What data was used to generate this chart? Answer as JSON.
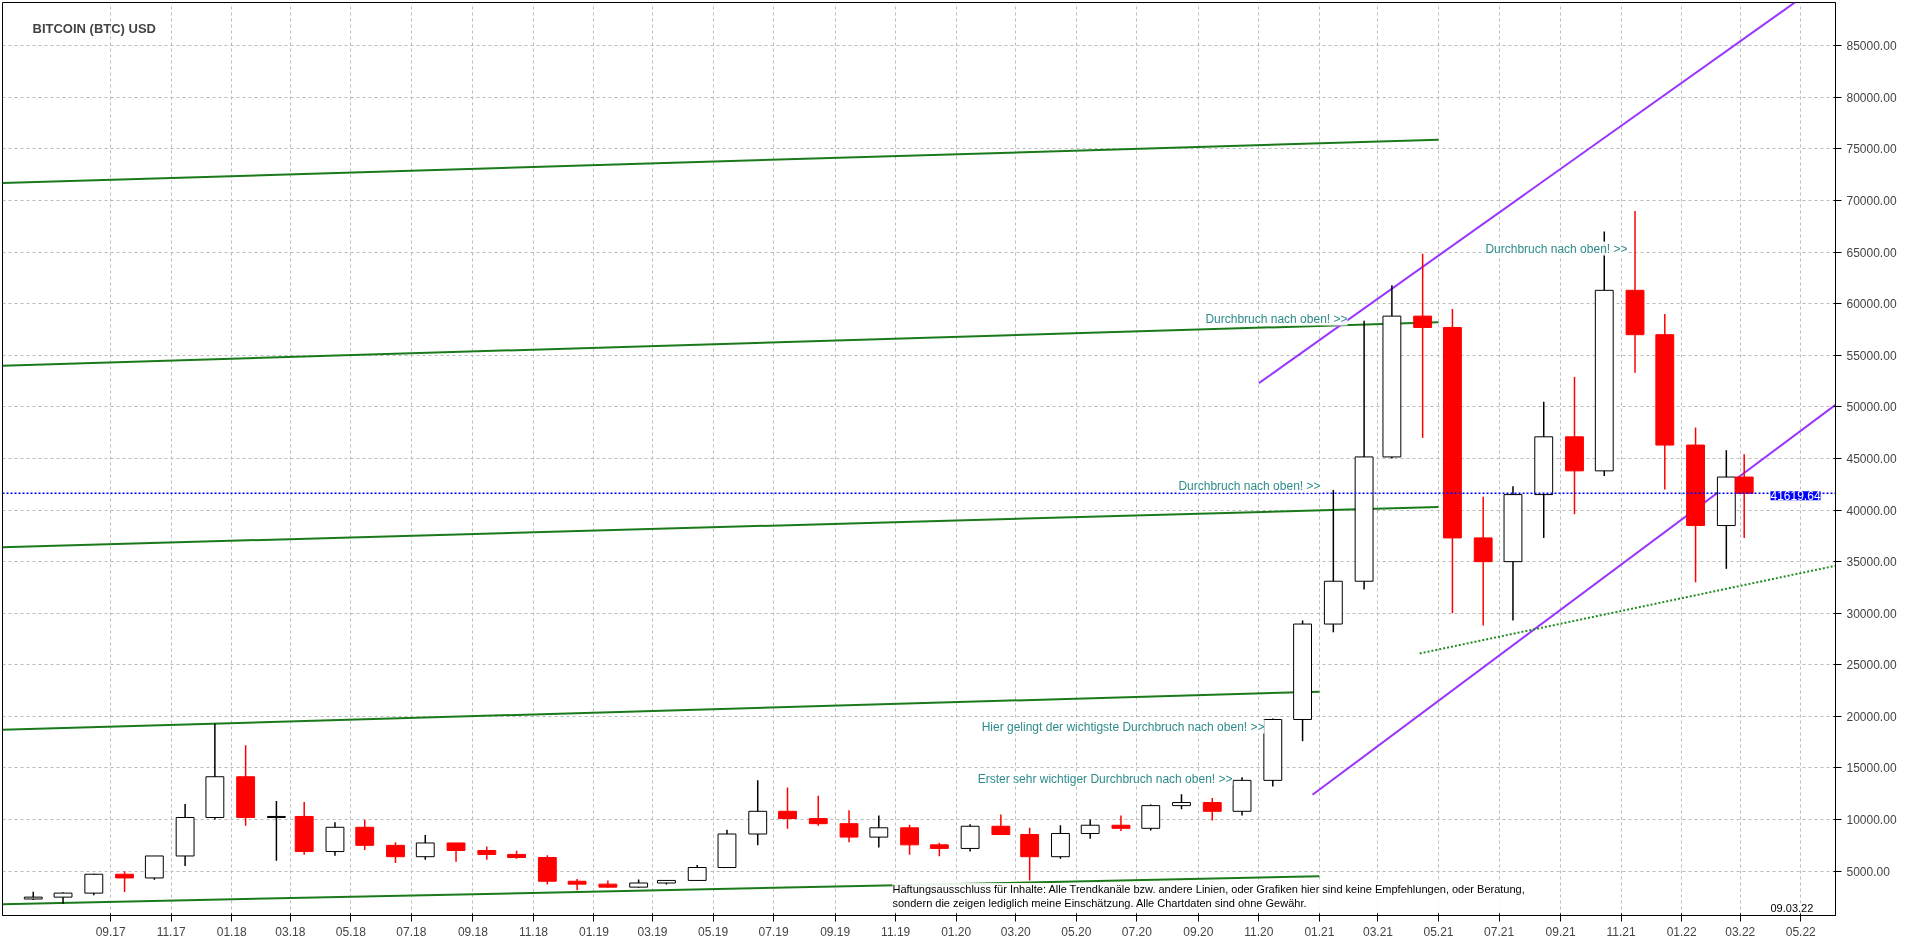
{
  "chart_data": {
    "type": "candlestick",
    "title": "BITCOIN (BTC) USD",
    "x": [
      "2017-06-15",
      "2017-07-15",
      "2017-08-15",
      "2017-09-15",
      "2017-10-15",
      "2017-11-15",
      "2017-12-15",
      "2018-01-15",
      "2018-02-15",
      "2018-03-15",
      "2018-04-15",
      "2018-05-15",
      "2018-06-15",
      "2018-07-15",
      "2018-08-15",
      "2018-09-15",
      "2018-10-15",
      "2018-11-15",
      "2018-12-15",
      "2019-01-15",
      "2019-02-15",
      "2019-03-15",
      "2019-04-15",
      "2019-05-15",
      "2019-06-15",
      "2019-07-15",
      "2019-08-15",
      "2019-09-15",
      "2019-10-15",
      "2019-11-15",
      "2019-12-15",
      "2020-01-15",
      "2020-02-15",
      "2020-03-15",
      "2020-04-15",
      "2020-05-15",
      "2020-06-15",
      "2020-07-15",
      "2020-08-15",
      "2020-09-15",
      "2020-10-15",
      "2020-11-15",
      "2020-12-15",
      "2021-01-15",
      "2021-02-15",
      "2021-03-15",
      "2021-04-15",
      "2021-05-15",
      "2021-06-15",
      "2021-07-15",
      "2021-08-15",
      "2021-09-15",
      "2021-10-15",
      "2021-11-15",
      "2021-12-15",
      "2022-01-15",
      "2022-02-15",
      "2022-03-05"
    ],
    "ohlc": [
      [
        2300,
        3000,
        2200,
        2480
      ],
      [
        2480,
        2950,
        1840,
        2870
      ],
      [
        2870,
        4750,
        2670,
        4700
      ],
      [
        4700,
        4980,
        2980,
        4340
      ],
      [
        4340,
        6470,
        4160,
        6470
      ],
      [
        6470,
        11500,
        5500,
        10200
      ],
      [
        10200,
        19300,
        10000,
        14150
      ],
      [
        14150,
        17200,
        9400,
        10200
      ],
      [
        10200,
        11800,
        6000,
        10300
      ],
      [
        10300,
        11700,
        6600,
        6900
      ],
      [
        6900,
        9750,
        6500,
        9250
      ],
      [
        9250,
        9990,
        7050,
        7500
      ],
      [
        7500,
        7800,
        5800,
        6400
      ],
      [
        6400,
        8500,
        6100,
        7730
      ],
      [
        7730,
        7750,
        5900,
        7000
      ],
      [
        7000,
        7400,
        6100,
        6620
      ],
      [
        6620,
        6970,
        6200,
        6320
      ],
      [
        6320,
        6550,
        3700,
        4020
      ],
      [
        4020,
        4250,
        3150,
        3740
      ],
      [
        3740,
        4100,
        3400,
        3450
      ],
      [
        3450,
        4200,
        3390,
        3850
      ],
      [
        3850,
        4100,
        3700,
        4100
      ],
      [
        4100,
        5600,
        4100,
        5350
      ],
      [
        5350,
        9000,
        5350,
        8600
      ],
      [
        8600,
        13800,
        7500,
        10800
      ],
      [
        10800,
        13100,
        9100,
        10100
      ],
      [
        10100,
        12300,
        9400,
        9600
      ],
      [
        9600,
        10900,
        7800,
        8300
      ],
      [
        8300,
        10400,
        7300,
        9200
      ],
      [
        9200,
        9500,
        6600,
        7550
      ],
      [
        7550,
        7750,
        6450,
        7200
      ],
      [
        7200,
        9550,
        6900,
        9350
      ],
      [
        9350,
        10500,
        8500,
        8550
      ],
      [
        8550,
        9200,
        4100,
        6400
      ],
      [
        6400,
        9450,
        6200,
        8650
      ],
      [
        8650,
        10000,
        8150,
        9450
      ],
      [
        9450,
        10400,
        8900,
        9150
      ],
      [
        9150,
        11450,
        8950,
        11350
      ],
      [
        11350,
        12450,
        11000,
        11650
      ],
      [
        11650,
        12100,
        9900,
        10800
      ],
      [
        10800,
        14100,
        10400,
        13800
      ],
      [
        13800,
        19800,
        13200,
        19700
      ],
      [
        19700,
        29300,
        17600,
        28950
      ],
      [
        28950,
        41950,
        28150,
        33100
      ],
      [
        33100,
        58350,
        32300,
        45150
      ],
      [
        45150,
        61800,
        45000,
        58800
      ],
      [
        58800,
        64850,
        47000,
        57700
      ],
      [
        57700,
        59500,
        30000,
        37300
      ],
      [
        37300,
        41300,
        28800,
        35000
      ],
      [
        35000,
        42300,
        29300,
        41500
      ],
      [
        41500,
        50500,
        37300,
        47100
      ],
      [
        47100,
        52900,
        39600,
        43800
      ],
      [
        43800,
        67000,
        43300,
        61300
      ],
      [
        61300,
        69000,
        53300,
        57000
      ],
      [
        57000,
        59000,
        42000,
        46300
      ],
      [
        46300,
        48000,
        33000,
        38500
      ],
      [
        38500,
        45800,
        34300,
        43200
      ],
      [
        43200,
        45400,
        37300,
        41620
      ]
    ],
    "colors": [
      "#000000",
      "#000000",
      "#000000",
      "#ff0000",
      "#000000",
      "#000000",
      "#000000",
      "#ff0000",
      "#000000",
      "#ff0000",
      "#000000",
      "#ff0000",
      "#ff0000",
      "#000000",
      "#ff0000",
      "#ff0000",
      "#ff0000",
      "#ff0000",
      "#ff0000",
      "#ff0000",
      "#000000",
      "#000000",
      "#000000",
      "#000000",
      "#000000",
      "#ff0000",
      "#ff0000",
      "#ff0000",
      "#000000",
      "#ff0000",
      "#ff0000",
      "#000000",
      "#ff0000",
      "#ff0000",
      "#000000",
      "#000000",
      "#ff0000",
      "#000000",
      "#000000",
      "#ff0000",
      "#000000",
      "#000000",
      "#000000",
      "#000000",
      "#000000",
      "#000000",
      "#ff0000",
      "#ff0000",
      "#ff0000",
      "#000000",
      "#000000",
      "#ff0000",
      "#000000",
      "#ff0000",
      "#ff0000",
      "#ff0000",
      "#000000",
      "#ff0000"
    ],
    "series": [
      {
        "type": "line",
        "color": "#1a7a1a",
        "line_style": "solid",
        "x": [
          "2017-05-15",
          "2021-05-01"
        ],
        "values": [
          71700,
          75900
        ]
      },
      {
        "type": "line",
        "color": "#1a7a1a",
        "line_style": "solid",
        "x": [
          "2017-05-15",
          "2021-05-01"
        ],
        "values": [
          54000,
          58200
        ]
      },
      {
        "type": "line",
        "color": "#1a7a1a",
        "line_style": "solid",
        "x": [
          "2017-05-15",
          "2021-05-01"
        ],
        "values": [
          36400,
          40300
        ]
      },
      {
        "type": "line",
        "color": "#1a7a1a",
        "line_style": "solid",
        "x": [
          "2017-05-15",
          "2021-01-01"
        ],
        "values": [
          18700,
          22400
        ]
      },
      {
        "type": "line",
        "color": "#1a7a1a",
        "line_style": "solid",
        "x": [
          "2017-05-15",
          "2021-01-01"
        ],
        "values": [
          1800,
          4500
        ]
      },
      {
        "type": "line",
        "color": "#9933ff",
        "line_style": "solid",
        "x": [
          "2020-12-25",
          "2022-06-05"
        ],
        "values": [
          12400,
          50200
        ]
      },
      {
        "type": "line",
        "color": "#9933ff",
        "line_style": "solid",
        "x": [
          "2020-11-01",
          "2022-04-25"
        ],
        "values": [
          52300,
          89200
        ]
      },
      {
        "type": "line",
        "color": "#228b22",
        "line_style": "dotted",
        "x": [
          "2021-04-12",
          "2022-06-05"
        ],
        "values": [
          26100,
          34600
        ]
      }
    ],
    "ref_lines": [
      {
        "axis": "y",
        "value": 41619.64,
        "label": "41619.64",
        "color": "#0000ff",
        "line_style": "dotted"
      }
    ],
    "annotations": [
      "Durchbruch nach oben! >>",
      "Durchbruch nach oben! >>",
      "Durchbruch nach oben! >>",
      "Hier gelingt der wichtigste Durchbruch nach oben! >>",
      "Erster sehr wichtiger Durchbruch nach oben! >>",
      "Haftungsausschluss für Inhalte: Alle Trendkanäle bzw. andere Linien, oder Grafiken hier sind keine Empfehlungen, oder Beratung,\nsondern die zeigen lediglich meine  Einschätzung. Alle Chartdaten sind ohne Gewähr.",
      "09.03.22"
    ],
    "xlim": [
      "2017-05-15",
      "2022-06-05"
    ],
    "ylim": [
      700,
      89200
    ],
    "xticks": [
      {
        "value": "2017-09-01",
        "label": "09.17"
      },
      {
        "value": "2017-11-01",
        "label": "11.17"
      },
      {
        "value": "2018-01-01",
        "label": "01.18"
      },
      {
        "value": "2018-03-01",
        "label": "03.18"
      },
      {
        "value": "2018-05-01",
        "label": "05.18"
      },
      {
        "value": "2018-07-01",
        "label": "07.18"
      },
      {
        "value": "2018-09-01",
        "label": "09.18"
      },
      {
        "value": "2018-11-01",
        "label": "11.18"
      },
      {
        "value": "2019-01-01",
        "label": "01.19"
      },
      {
        "value": "2019-03-01",
        "label": "03.19"
      },
      {
        "value": "2019-05-01",
        "label": "05.19"
      },
      {
        "value": "2019-07-01",
        "label": "07.19"
      },
      {
        "value": "2019-09-01",
        "label": "09.19"
      },
      {
        "value": "2019-11-01",
        "label": "11.19"
      },
      {
        "value": "2020-01-01",
        "label": "01.20"
      },
      {
        "value": "2020-03-01",
        "label": "03.20"
      },
      {
        "value": "2020-05-01",
        "label": "05.20"
      },
      {
        "value": "2020-07-01",
        "label": "07.20"
      },
      {
        "value": "2020-09-01",
        "label": "09.20"
      },
      {
        "value": "2020-11-01",
        "label": "11.20"
      },
      {
        "value": "2021-01-01",
        "label": "01.21"
      },
      {
        "value": "2021-03-01",
        "label": "03.21"
      },
      {
        "value": "2021-05-01",
        "label": "05.21"
      },
      {
        "value": "2021-07-01",
        "label": "07.21"
      },
      {
        "value": "2021-09-01",
        "label": "09.21"
      },
      {
        "value": "2021-11-01",
        "label": "11.21"
      },
      {
        "value": "2022-01-01",
        "label": "01.22"
      },
      {
        "value": "2022-03-01",
        "label": "03.22"
      },
      {
        "value": "2022-05-01",
        "label": "05.22"
      }
    ],
    "yticks": [
      {
        "value": 5000,
        "label": "5000.00"
      },
      {
        "value": 10000,
        "label": "10000.00"
      },
      {
        "value": 15000,
        "label": "15000.00"
      },
      {
        "value": 20000,
        "label": "20000.00"
      },
      {
        "value": 25000,
        "label": "25000.00"
      },
      {
        "value": 30000,
        "label": "30000.00"
      },
      {
        "value": 35000,
        "label": "35000.00"
      },
      {
        "value": 40000,
        "label": "40000.00"
      },
      {
        "value": 45000,
        "label": "45000.00"
      },
      {
        "value": 50000,
        "label": "50000.00"
      },
      {
        "value": 55000,
        "label": "55000.00"
      },
      {
        "value": 60000,
        "label": "60000.00"
      },
      {
        "value": 65000,
        "label": "65000.00"
      },
      {
        "value": 70000,
        "label": "70000.00"
      },
      {
        "value": 75000,
        "label": "75000.00"
      },
      {
        "value": 80000,
        "label": "80000.00"
      },
      {
        "value": 85000,
        "label": "85000.00"
      }
    ],
    "grid": true
  }
}
